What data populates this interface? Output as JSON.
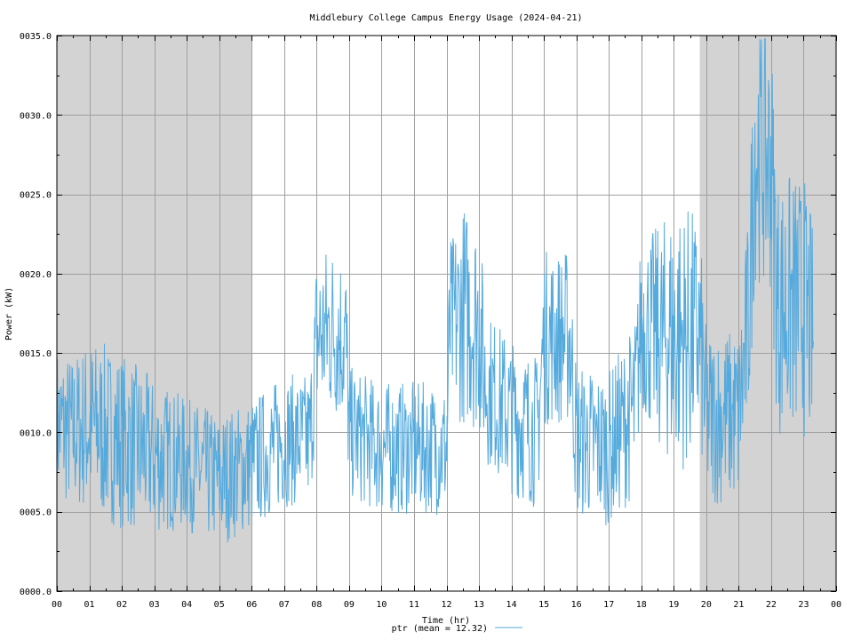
{
  "chart_data": {
    "type": "line",
    "title": "Middlebury College Campus Energy Usage (2024-04-21)",
    "xlabel": "Time (hr)",
    "ylabel": "Power (kW)",
    "xlim": [
      0,
      24
    ],
    "ylim": [
      0,
      35
    ],
    "x_ticks": [
      "00",
      "01",
      "02",
      "03",
      "04",
      "05",
      "06",
      "07",
      "08",
      "09",
      "10",
      "11",
      "12",
      "13",
      "14",
      "15",
      "16",
      "17",
      "18",
      "19",
      "20",
      "21",
      "22",
      "23",
      "00"
    ],
    "y_ticks": [
      "0000.0",
      "0005.0",
      "0010.0",
      "0015.0",
      "0020.0",
      "0025.0",
      "0030.0",
      "0035.0"
    ],
    "grid": true,
    "shaded_regions": [
      [
        0,
        6
      ],
      [
        19.8,
        24
      ]
    ],
    "colors": {
      "series": "#55aadd",
      "shade": "#d3d3d3",
      "grid": "#a0a0a0"
    },
    "legend": {
      "placement": "bottom-center"
    },
    "series": [
      {
        "name": "ptr",
        "legend_label": "ptr (mean = 12.32)",
        "profile": {
          "hours": [
            0,
            0.5,
            1,
            2,
            3,
            4,
            5,
            6,
            7,
            7.8,
            8,
            8.5,
            8.9,
            9,
            10,
            11,
            12,
            12.1,
            12.5,
            13,
            13.2,
            14,
            14.8,
            15,
            15.5,
            15.8,
            16,
            17,
            17.8,
            18,
            18.5,
            19,
            19.5,
            19.8,
            20,
            21,
            21.3,
            21.5,
            22,
            22.2,
            22.5,
            23,
            23.3
          ],
          "center": [
            10.5,
            10,
            10.5,
            9.5,
            8.5,
            8,
            7,
            8,
            9.5,
            9.5,
            16,
            16.5,
            16,
            10,
            9,
            9,
            9,
            16.5,
            17.5,
            17,
            13,
            11,
            10,
            16,
            16,
            16,
            9.5,
            9,
            11.5,
            17,
            16,
            16,
            16,
            16,
            11,
            11,
            17,
            28,
            27,
            18,
            18,
            18,
            16
          ],
          "spread": [
            3.5,
            3.5,
            4,
            4,
            3.5,
            3,
            3,
            3,
            3,
            3,
            4,
            4,
            4,
            3,
            3,
            3,
            3,
            4,
            5,
            5,
            3.5,
            3.5,
            3.5,
            4,
            4,
            4,
            3.5,
            3.5,
            4,
            4,
            5,
            6,
            6,
            5,
            4,
            4,
            5,
            6,
            6,
            6,
            6,
            6,
            5
          ],
          "min": 2.3,
          "max": 34.8
        }
      }
    ]
  }
}
